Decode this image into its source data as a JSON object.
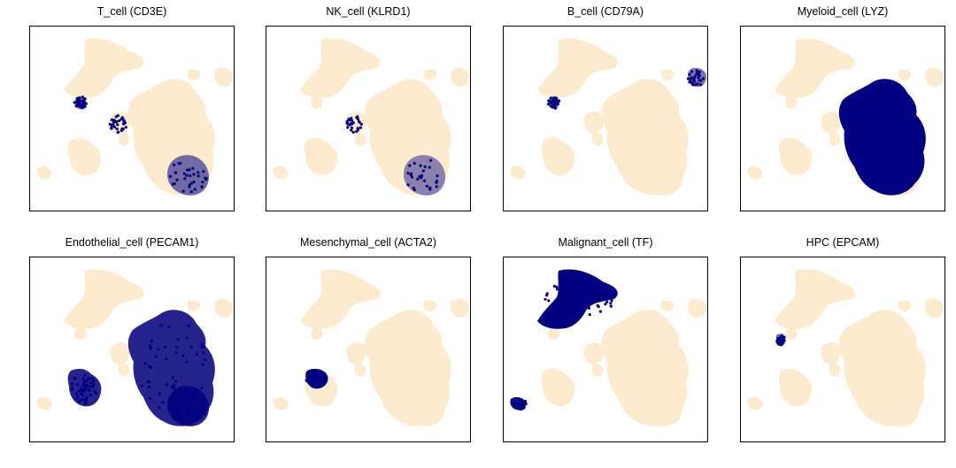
{
  "colors": {
    "base": "#fdebd0",
    "highlight": "#000080",
    "frame": "#000000"
  },
  "chart_data": [
    {
      "type": "scatter",
      "title": "T_cell (CD3E)",
      "highlight": [
        "cd8",
        "nk",
        "b"
      ],
      "density": 0.55
    },
    {
      "type": "scatter",
      "title": "NK_cell (KLRD1)",
      "highlight": [
        "nk",
        "b"
      ],
      "density": 0.45
    },
    {
      "type": "scatter",
      "title": "B_cell (CD79A)",
      "highlight": [
        "tr",
        "cd8"
      ],
      "density": 0.5
    },
    {
      "type": "scatter",
      "title": "Myeloid_cell (LYZ)",
      "highlight": [
        "main"
      ],
      "density": 1.0
    },
    {
      "type": "scatter",
      "title": "Endothelial_cell (PECAM1)",
      "highlight": [
        "endo",
        "main",
        "nk"
      ],
      "density": 0.85
    },
    {
      "type": "scatter",
      "title": "Mesenchymal_cell (ACTA2)",
      "highlight": [
        "mes"
      ],
      "density": 1.0
    },
    {
      "type": "scatter",
      "title": "Malignant_cell (TF)",
      "highlight": [
        "top",
        "mal"
      ],
      "density": 1.0
    },
    {
      "type": "scatter",
      "title": "HPC (EPCAM)",
      "highlight": [
        "hpc"
      ],
      "density": 0.6
    }
  ]
}
